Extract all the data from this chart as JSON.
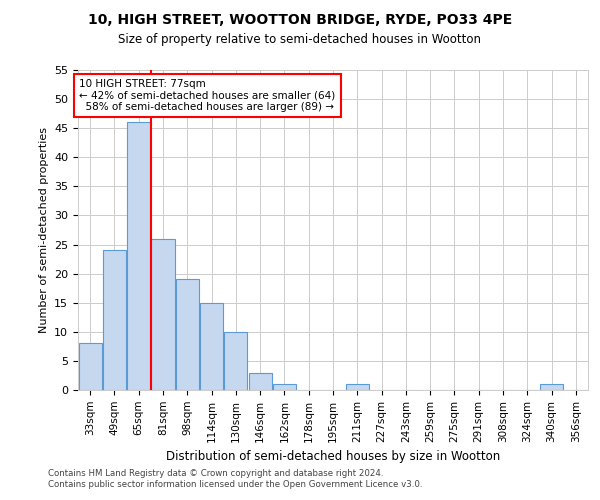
{
  "title": "10, HIGH STREET, WOOTTON BRIDGE, RYDE, PO33 4PE",
  "subtitle": "Size of property relative to semi-detached houses in Wootton",
  "xlabel": "Distribution of semi-detached houses by size in Wootton",
  "ylabel": "Number of semi-detached properties",
  "footnote1": "Contains HM Land Registry data © Crown copyright and database right 2024.",
  "footnote2": "Contains public sector information licensed under the Open Government Licence v3.0.",
  "categories": [
    "33sqm",
    "49sqm",
    "65sqm",
    "81sqm",
    "98sqm",
    "114sqm",
    "130sqm",
    "146sqm",
    "162sqm",
    "178sqm",
    "195sqm",
    "211sqm",
    "227sqm",
    "243sqm",
    "259sqm",
    "275sqm",
    "291sqm",
    "308sqm",
    "324sqm",
    "340sqm",
    "356sqm"
  ],
  "values": [
    8,
    24,
    46,
    26,
    19,
    15,
    10,
    3,
    1,
    0,
    0,
    1,
    0,
    0,
    0,
    0,
    0,
    0,
    0,
    1,
    0
  ],
  "bar_color": "#c5d8f0",
  "bar_edge_color": "#5b9bd5",
  "grid_color": "#cccccc",
  "property_line_x": 2.5,
  "property_sqm": 77,
  "property_label": "10 HIGH STREET: 77sqm",
  "pct_smaller": 42,
  "pct_smaller_n": 64,
  "pct_larger": 58,
  "pct_larger_n": 89,
  "annotation_box_color": "#ff0000",
  "ylim": [
    0,
    55
  ],
  "yticks": [
    0,
    5,
    10,
    15,
    20,
    25,
    30,
    35,
    40,
    45,
    50,
    55
  ]
}
